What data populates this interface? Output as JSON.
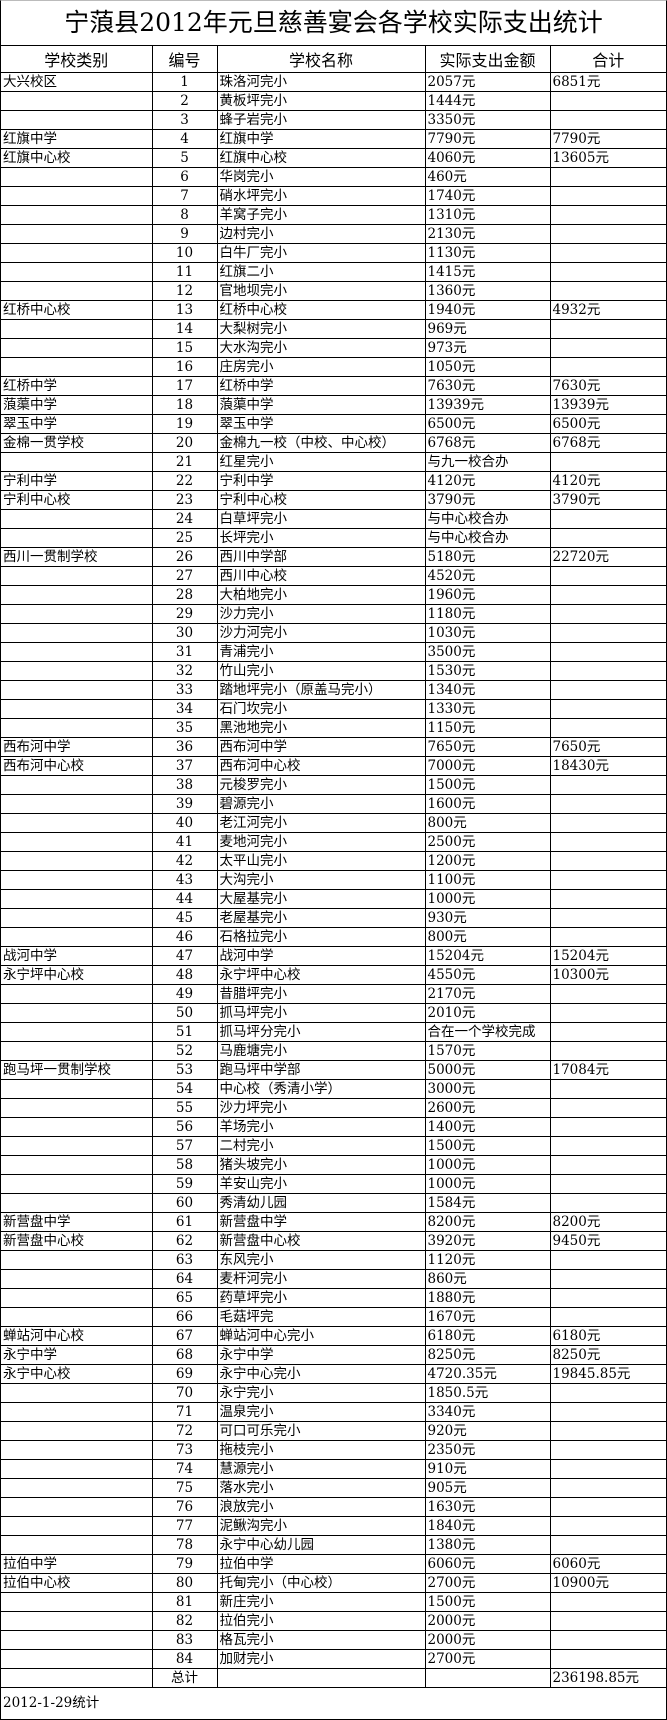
{
  "title": "宁蒗县2012年元旦慈善宴会各学校实际支出统计",
  "headers": [
    "学校类别",
    "编号",
    "学校名称",
    "实际支出金额",
    "合计"
  ],
  "rows": [
    [
      "大兴校区",
      "1",
      "珠洛河完小",
      "2057元",
      "6851元"
    ],
    [
      "",
      "2",
      "黄板坪完小",
      "1444元",
      ""
    ],
    [
      "",
      "3",
      "蜂子岩完小",
      "3350元",
      ""
    ],
    [
      "红旗中学",
      "4",
      "红旗中学",
      "7790元",
      "7790元"
    ],
    [
      "红旗中心校",
      "5",
      "红旗中心校",
      "4060元",
      "13605元"
    ],
    [
      "",
      "6",
      "华岗完小",
      "460元",
      ""
    ],
    [
      "",
      "7",
      "硝水坪完小",
      "1740元",
      ""
    ],
    [
      "",
      "8",
      "羊窝子完小",
      "1310元",
      ""
    ],
    [
      "",
      "9",
      "边村完小",
      "2130元",
      ""
    ],
    [
      "",
      "10",
      "白牛厂完小",
      "1130元",
      ""
    ],
    [
      "",
      "11",
      "红旗二小",
      "1415元",
      ""
    ],
    [
      "",
      "12",
      "官地坝完小",
      "1360元",
      ""
    ],
    [
      "红桥中心校",
      "13",
      "红桥中心校",
      "1940元",
      "4932元"
    ],
    [
      "",
      "14",
      "大梨树完小",
      "969元",
      ""
    ],
    [
      "",
      "15",
      "大水沟完小",
      "973元",
      ""
    ],
    [
      "",
      "16",
      "庄房完小",
      "1050元",
      ""
    ],
    [
      "红桥中学",
      "17",
      "红桥中学",
      "7630元",
      "7630元"
    ],
    [
      "蒗蕖中学",
      "18",
      "蒗蕖中学",
      "13939元",
      "13939元"
    ],
    [
      "翠玉中学",
      "19",
      "翠玉中学",
      "6500元",
      "6500元"
    ],
    [
      "金棉一贯学校",
      "20",
      "金棉九一校（中校、中心校）",
      "6768元",
      "6768元"
    ],
    [
      "",
      "21",
      "红星完小",
      "与九一校合办",
      ""
    ],
    [
      "宁利中学",
      "22",
      "宁利中学",
      "4120元",
      "4120元"
    ],
    [
      "宁利中心校",
      "23",
      "宁利中心校",
      "3790元",
      "3790元"
    ],
    [
      "",
      "24",
      "白草坪完小",
      "与中心校合办",
      ""
    ],
    [
      "",
      "25",
      "长坪完小",
      "与中心校合办",
      ""
    ],
    [
      "西川一贯制学校",
      "26",
      "西川中学部",
      "5180元",
      "22720元"
    ],
    [
      "",
      "27",
      "西川中心校",
      "4520元",
      ""
    ],
    [
      "",
      "28",
      "大柏地完小",
      "1960元",
      ""
    ],
    [
      "",
      "29",
      "沙力完小",
      "1180元",
      ""
    ],
    [
      "",
      "30",
      "沙力河完小",
      "1030元",
      ""
    ],
    [
      "",
      "31",
      "青浦完小",
      "3500元",
      ""
    ],
    [
      "",
      "32",
      "竹山完小",
      "1530元",
      ""
    ],
    [
      "",
      "33",
      "踏地坪完小（原盖马完小）",
      "1340元",
      ""
    ],
    [
      "",
      "34",
      "石门坎完小",
      "1330元",
      ""
    ],
    [
      "",
      "35",
      "黑池地完小",
      "1150元",
      ""
    ],
    [
      "西布河中学",
      "36",
      "西布河中学",
      "7650元",
      "7650元"
    ],
    [
      "西布河中心校",
      "37",
      "西布河中心校",
      "7000元",
      "18430元"
    ],
    [
      "",
      "38",
      "元梭罗完小",
      "1500元",
      ""
    ],
    [
      "",
      "39",
      "碧源完小",
      "1600元",
      ""
    ],
    [
      "",
      "40",
      "老江河完小",
      "800元",
      ""
    ],
    [
      "",
      "41",
      "麦地河完小",
      "2500元",
      ""
    ],
    [
      "",
      "42",
      "太平山完小",
      "1200元",
      ""
    ],
    [
      "",
      "43",
      "大沟完小",
      "1100元",
      ""
    ],
    [
      "",
      "44",
      "大屋基完小",
      "1000元",
      ""
    ],
    [
      "",
      "45",
      "老屋基完小",
      "930元",
      ""
    ],
    [
      "",
      "46",
      "石格拉完小",
      "800元",
      ""
    ],
    [
      "战河中学",
      "47",
      "战河中学",
      "15204元",
      "15204元"
    ],
    [
      "永宁坪中心校",
      "48",
      "永宁坪中心校",
      "4550元",
      "10300元"
    ],
    [
      "",
      "49",
      "昔腊坪完小",
      "2170元",
      ""
    ],
    [
      "",
      "50",
      "抓马坪完小",
      "2010元",
      ""
    ],
    [
      "",
      "51",
      "抓马坪分完小",
      "合在一个学校完成",
      ""
    ],
    [
      "",
      "52",
      "马鹿塘完小",
      "1570元",
      ""
    ],
    [
      "跑马坪一贯制学校",
      "53",
      "跑马坪中学部",
      "5000元",
      "17084元"
    ],
    [
      "",
      "54",
      "中心校（秀清小学）",
      "3000元",
      ""
    ],
    [
      "",
      "55",
      "沙力坪完小",
      "2600元",
      ""
    ],
    [
      "",
      "56",
      "羊场完小",
      "1400元",
      ""
    ],
    [
      "",
      "57",
      "二村完小",
      "1500元",
      ""
    ],
    [
      "",
      "58",
      "猪头坡完小",
      "1000元",
      ""
    ],
    [
      "",
      "59",
      "羊安山完小",
      "1000元",
      ""
    ],
    [
      "",
      "60",
      "秀清幼儿园",
      "1584元",
      ""
    ],
    [
      "新营盘中学",
      "61",
      "新营盘中学",
      "8200元",
      "8200元"
    ],
    [
      "新营盘中心校",
      "62",
      "新营盘中心校",
      "3920元",
      "9450元"
    ],
    [
      "",
      "63",
      "东风完小",
      "1120元",
      ""
    ],
    [
      "",
      "64",
      "麦杆河完小",
      "860元",
      ""
    ],
    [
      "",
      "65",
      "药草坪完小",
      "1880元",
      ""
    ],
    [
      "",
      "66",
      "毛菇坪完",
      "1670元",
      ""
    ],
    [
      "蝉站河中心校",
      "67",
      "蝉站河中心完小",
      "6180元",
      "6180元"
    ],
    [
      "永宁中学",
      "68",
      "永宁中学",
      "8250元",
      "8250元"
    ],
    [
      "永宁中心校",
      "69",
      "永宁中心完小",
      "4720.35元",
      "19845.85元"
    ],
    [
      "",
      "70",
      "永宁完小",
      "1850.5元",
      ""
    ],
    [
      "",
      "71",
      "温泉完小",
      "3340元",
      ""
    ],
    [
      "",
      "72",
      "可口可乐完小",
      "920元",
      ""
    ],
    [
      "",
      "73",
      "拖枝完小",
      "2350元",
      ""
    ],
    [
      "",
      "74",
      "慧源完小",
      "910元",
      ""
    ],
    [
      "",
      "75",
      "落水完小",
      "905元",
      ""
    ],
    [
      "",
      "76",
      "浪放完小",
      "1630元",
      ""
    ],
    [
      "",
      "77",
      "泥鳅沟完小",
      "1840元",
      ""
    ],
    [
      "",
      "78",
      "永宁中心幼儿园",
      "1380元",
      ""
    ],
    [
      "拉伯中学",
      "79",
      "拉伯中学",
      "6060元",
      "6060元"
    ],
    [
      "拉伯中心校",
      "80",
      "托甸完小（中心校）",
      "2700元",
      "10900元"
    ],
    [
      "",
      "81",
      "新庄完小",
      "1500元",
      ""
    ],
    [
      "",
      "82",
      "拉伯完小",
      "2000元",
      ""
    ],
    [
      "",
      "83",
      "格瓦完小",
      "2000元",
      ""
    ],
    [
      "",
      "84",
      "加财完小",
      "2700元",
      ""
    ]
  ],
  "total_row": {
    "label": "总计",
    "value": "236198.85元"
  },
  "footer": "2012-1-29统计"
}
